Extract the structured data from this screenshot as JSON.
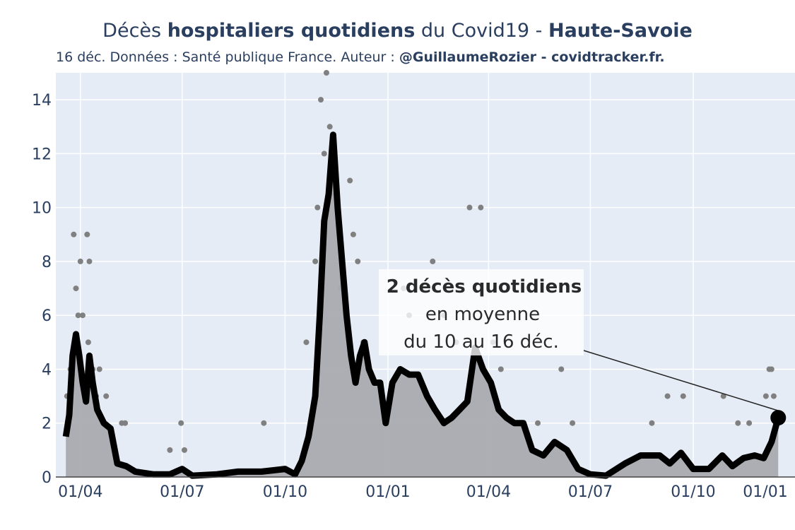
{
  "title": {
    "part1": "Décès ",
    "bold1": "hospitaliers quotidiens",
    "part2": " du Covid19 - ",
    "bold2": "Haute-Savoie"
  },
  "subtitle": {
    "text": "16 déc. Données : Santé publique France. Auteur : ",
    "bold": "@GuillaumeRozier - covidtracker.fr."
  },
  "annotation": {
    "line1": "2 décès quotidiens",
    "line2": "en moyenne",
    "line3": "du 10 au 16 déc."
  },
  "colors": {
    "plot_bg": "#e5ecf6",
    "grid": "#ffffff",
    "line": "#000000",
    "area": "#a9abb0",
    "dots": "#808080",
    "text": "#2a3f5f"
  },
  "chart_data": {
    "type": "line",
    "x_axis": {
      "type": "date",
      "range": [
        "2020-03-10",
        "2021-12-31"
      ],
      "tick_dates": [
        "2020-04-01",
        "2020-07-01",
        "2020-10-01",
        "2021-01-01",
        "2021-04-01",
        "2021-07-01",
        "2021-10-01",
        "2022-01-01"
      ],
      "tick_labels": [
        "01/04",
        "01/07",
        "01/10",
        "01/01",
        "01/04",
        "01/07",
        "01/10",
        "01/01"
      ]
    },
    "y_axis": {
      "range": [
        0,
        15
      ],
      "ticks": [
        0,
        2,
        4,
        6,
        8,
        10,
        12,
        14
      ],
      "grid": true
    },
    "series": [
      {
        "kind": "7-day rolling average (line + filled area)",
        "points": [
          [
            "2020-03-19",
            1.5
          ],
          [
            "2020-03-22",
            2.3
          ],
          [
            "2020-03-25",
            4.5
          ],
          [
            "2020-03-28",
            5.3
          ],
          [
            "2020-03-31",
            4.5
          ],
          [
            "2020-04-03",
            3.5
          ],
          [
            "2020-04-06",
            2.8
          ],
          [
            "2020-04-09",
            4.5
          ],
          [
            "2020-04-12",
            3.5
          ],
          [
            "2020-04-16",
            2.5
          ],
          [
            "2020-04-22",
            2.0
          ],
          [
            "2020-04-28",
            1.8
          ],
          [
            "2020-05-04",
            0.5
          ],
          [
            "2020-05-12",
            0.4
          ],
          [
            "2020-05-20",
            0.2
          ],
          [
            "2020-06-05",
            0.1
          ],
          [
            "2020-06-20",
            0.1
          ],
          [
            "2020-07-01",
            0.3
          ],
          [
            "2020-07-10",
            0.05
          ],
          [
            "2020-08-01",
            0.1
          ],
          [
            "2020-08-20",
            0.2
          ],
          [
            "2020-09-10",
            0.2
          ],
          [
            "2020-10-01",
            0.3
          ],
          [
            "2020-10-10",
            0.1
          ],
          [
            "2020-10-16",
            0.6
          ],
          [
            "2020-10-22",
            1.5
          ],
          [
            "2020-10-28",
            3.0
          ],
          [
            "2020-11-01",
            6.0
          ],
          [
            "2020-11-05",
            9.5
          ],
          [
            "2020-11-09",
            10.5
          ],
          [
            "2020-11-13",
            12.7
          ],
          [
            "2020-11-17",
            10.0
          ],
          [
            "2020-11-21",
            8.0
          ],
          [
            "2020-11-25",
            6.0
          ],
          [
            "2020-11-29",
            4.5
          ],
          [
            "2020-12-03",
            3.5
          ],
          [
            "2020-12-07",
            4.5
          ],
          [
            "2020-12-11",
            5.0
          ],
          [
            "2020-12-15",
            4.0
          ],
          [
            "2020-12-20",
            3.5
          ],
          [
            "2020-12-25",
            3.5
          ],
          [
            "2020-12-30",
            2.0
          ],
          [
            "2021-01-05",
            3.5
          ],
          [
            "2021-01-12",
            4.0
          ],
          [
            "2021-01-20",
            3.8
          ],
          [
            "2021-01-28",
            3.8
          ],
          [
            "2021-02-05",
            3.0
          ],
          [
            "2021-02-12",
            2.5
          ],
          [
            "2021-02-20",
            2.0
          ],
          [
            "2021-02-27",
            2.2
          ],
          [
            "2021-03-06",
            2.5
          ],
          [
            "2021-03-13",
            2.8
          ],
          [
            "2021-03-20",
            4.8
          ],
          [
            "2021-03-27",
            4.0
          ],
          [
            "2021-04-03",
            3.5
          ],
          [
            "2021-04-10",
            2.5
          ],
          [
            "2021-04-17",
            2.2
          ],
          [
            "2021-04-24",
            2.0
          ],
          [
            "2021-05-02",
            2.0
          ],
          [
            "2021-05-10",
            1.0
          ],
          [
            "2021-05-20",
            0.8
          ],
          [
            "2021-05-30",
            1.3
          ],
          [
            "2021-06-10",
            1.0
          ],
          [
            "2021-06-20",
            0.3
          ],
          [
            "2021-07-01",
            0.1
          ],
          [
            "2021-07-15",
            0.05
          ],
          [
            "2021-08-01",
            0.5
          ],
          [
            "2021-08-15",
            0.8
          ],
          [
            "2021-09-01",
            0.8
          ],
          [
            "2021-09-10",
            0.5
          ],
          [
            "2021-09-20",
            0.9
          ],
          [
            "2021-10-01",
            0.3
          ],
          [
            "2021-10-15",
            0.3
          ],
          [
            "2021-10-27",
            0.8
          ],
          [
            "2021-11-05",
            0.4
          ],
          [
            "2021-11-15",
            0.7
          ],
          [
            "2021-11-25",
            0.8
          ],
          [
            "2021-12-03",
            0.7
          ],
          [
            "2021-12-10",
            1.3
          ],
          [
            "2021-12-16",
            2.2
          ]
        ],
        "last_point": [
          "2021-12-16",
          2.2
        ]
      },
      {
        "kind": "daily values (grey dots)",
        "points": [
          [
            "2020-03-20",
            3
          ],
          [
            "2020-03-23",
            4
          ],
          [
            "2020-03-26",
            9
          ],
          [
            "2020-03-28",
            7
          ],
          [
            "2020-03-30",
            6
          ],
          [
            "2020-04-01",
            8
          ],
          [
            "2020-04-03",
            6
          ],
          [
            "2020-04-07",
            9
          ],
          [
            "2020-04-09",
            8
          ],
          [
            "2020-04-08",
            5
          ],
          [
            "2020-04-12",
            4
          ],
          [
            "2020-04-15",
            3
          ],
          [
            "2020-04-18",
            4
          ],
          [
            "2020-04-21",
            2
          ],
          [
            "2020-04-24",
            3
          ],
          [
            "2020-05-08",
            2
          ],
          [
            "2020-05-11",
            2
          ],
          [
            "2020-06-20",
            1
          ],
          [
            "2020-06-30",
            2
          ],
          [
            "2020-07-03",
            1
          ],
          [
            "2020-09-12",
            2
          ],
          [
            "2020-10-20",
            5
          ],
          [
            "2020-10-28",
            8
          ],
          [
            "2020-10-30",
            10
          ],
          [
            "2020-11-02",
            14
          ],
          [
            "2020-11-05",
            12
          ],
          [
            "2020-11-07",
            15
          ],
          [
            "2020-11-10",
            13
          ],
          [
            "2020-11-14",
            12
          ],
          [
            "2020-11-20",
            7
          ],
          [
            "2020-11-28",
            11
          ],
          [
            "2020-12-01",
            9
          ],
          [
            "2020-12-05",
            8
          ],
          [
            "2020-12-10",
            5
          ],
          [
            "2021-01-15",
            7
          ],
          [
            "2021-01-20",
            6
          ],
          [
            "2021-02-10",
            8
          ],
          [
            "2021-02-20",
            6
          ],
          [
            "2021-03-03",
            5
          ],
          [
            "2021-03-15",
            10
          ],
          [
            "2021-03-25",
            10
          ],
          [
            "2021-04-05",
            5
          ],
          [
            "2021-04-12",
            4
          ],
          [
            "2021-05-15",
            2
          ],
          [
            "2021-06-05",
            4
          ],
          [
            "2021-06-15",
            2
          ],
          [
            "2021-08-25",
            2
          ],
          [
            "2021-09-08",
            3
          ],
          [
            "2021-09-22",
            3
          ],
          [
            "2021-10-28",
            3
          ],
          [
            "2021-11-10",
            2
          ],
          [
            "2021-11-20",
            2
          ],
          [
            "2021-12-05",
            3
          ],
          [
            "2021-12-08",
            4
          ],
          [
            "2021-12-10",
            4
          ],
          [
            "2021-12-12",
            3
          ],
          [
            "2021-12-14",
            2
          ]
        ]
      }
    ]
  }
}
